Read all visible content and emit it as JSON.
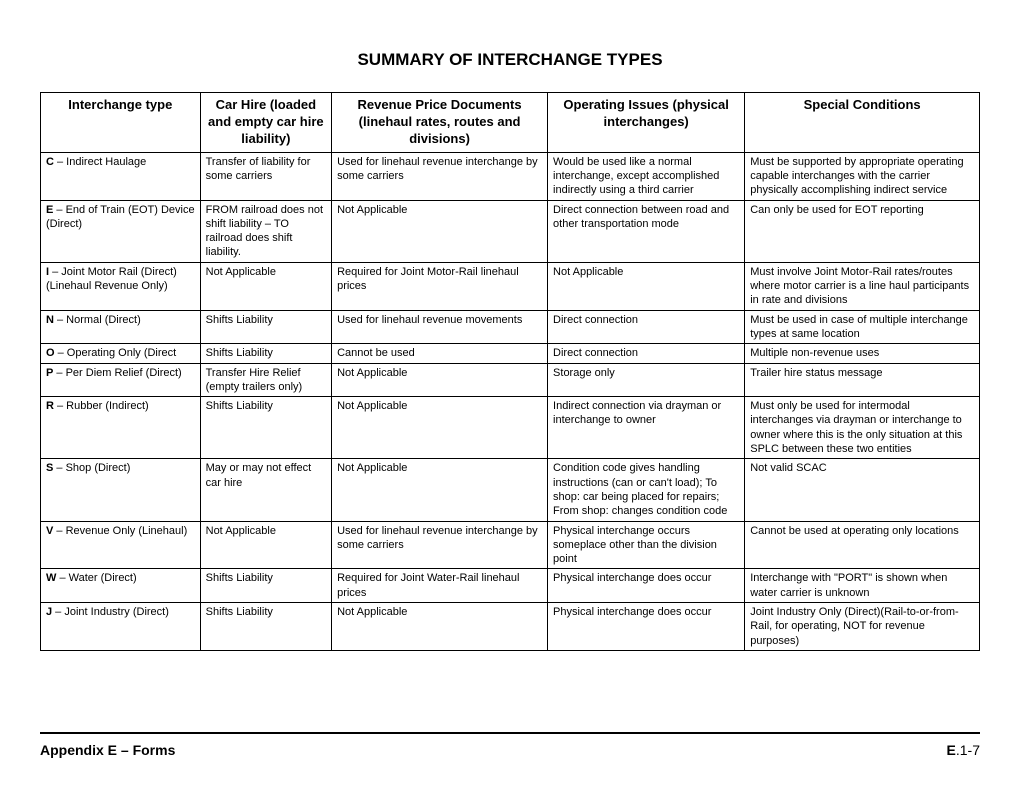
{
  "title": "SUMMARY OF INTERCHANGE TYPES",
  "table": {
    "columns": [
      "Interchange type",
      "Car Hire (loaded and empty car hire liability)",
      "Revenue Price Documents (linehaul rates, routes and divisions)",
      "Operating Issues (physical interchanges)",
      "Special Conditions"
    ],
    "rows": [
      {
        "code": "C",
        "label": " – Indirect Haulage",
        "c1": "Transfer of liability for some carriers",
        "c2": "Used for linehaul revenue interchange by some carriers",
        "c3": "Would be used like a normal interchange, except accomplished indirectly using a third carrier",
        "c4": "Must be supported by appropriate operating capable interchanges with the carrier physically accomplishing indirect service"
      },
      {
        "code": "E",
        "label": " – End of Train (EOT) Device (Direct)",
        "c1": "FROM railroad does not shift liability – TO railroad does shift liability.",
        "c2": "Not Applicable",
        "c3": "Direct connection between road and other transportation mode",
        "c4": "Can only be used for EOT reporting"
      },
      {
        "code": "I",
        "label": " – Joint Motor Rail (Direct) (Linehaul Revenue Only)",
        "c1": "Not Applicable",
        "c2": "Required for Joint Motor-Rail linehaul prices",
        "c3": "Not Applicable",
        "c4": "Must involve Joint Motor-Rail rates/routes where motor carrier is a line haul participants in rate and divisions"
      },
      {
        "code": "N",
        "label": " – Normal (Direct)",
        "c1": "Shifts Liability",
        "c2": "Used for linehaul revenue movements",
        "c3": "Direct connection",
        "c4": "Must be used in case of multiple interchange types at same location"
      },
      {
        "code": "O",
        "label": " – Operating Only (Direct",
        "c1": "Shifts Liability",
        "c2": "Cannot be used",
        "c3": "Direct connection",
        "c4": "Multiple non-revenue uses"
      },
      {
        "code": "P",
        "label": " – Per Diem Relief (Direct)",
        "c1": "Transfer Hire Relief (empty trailers only)",
        "c2": "Not Applicable",
        "c3": "Storage only",
        "c4": "Trailer hire status message"
      },
      {
        "code": "R",
        "label": " – Rubber (Indirect)",
        "c1": "Shifts Liability",
        "c2": "Not Applicable",
        "c3": "Indirect connection via drayman or interchange to owner",
        "c4": "Must only be used for intermodal interchanges via drayman or interchange to owner where this is the only situation at this SPLC between these two entities"
      },
      {
        "code": "S",
        "label": " – Shop (Direct)",
        "c1": "May or may not effect car hire",
        "c2": "Not Applicable",
        "c3": "Condition code gives handling instructions (can or can't load); To shop: car being placed for repairs; From shop: changes condition code",
        "c4": "Not valid SCAC"
      },
      {
        "code": "V",
        "label": " – Revenue Only (Linehaul)",
        "c1": "Not Applicable",
        "c2": "Used for linehaul revenue interchange by some carriers",
        "c3": "Physical interchange occurs someplace other than the division point",
        "c4": "Cannot be used at operating only locations"
      },
      {
        "code": "W",
        "label": " – Water (Direct)",
        "c1": "Shifts Liability",
        "c2": "Required for Joint Water-Rail linehaul prices",
        "c3": "Physical interchange does occur",
        "c4": "Interchange with \"PORT\" is shown when water carrier is unknown"
      },
      {
        "code": "J",
        "label": " – Joint Industry (Direct)",
        "c1": "Shifts Liability",
        "c2": "Not Applicable",
        "c3": "Physical interchange does occur",
        "c4": "Joint Industry Only (Direct)(Rail-to-or-from-Rail, for operating, NOT for revenue purposes)"
      }
    ]
  },
  "footer": {
    "left": "Appendix E – Forms",
    "right_bold": "E",
    "right_rest": ".1-7"
  },
  "style": {
    "background_color": "#ffffff",
    "border_color": "#000000",
    "title_fontsize": 17,
    "header_fontsize": 13,
    "cell_fontsize": 11,
    "footer_fontsize": 14,
    "col_widths_pct": [
      17,
      14,
      23,
      21,
      25
    ]
  }
}
